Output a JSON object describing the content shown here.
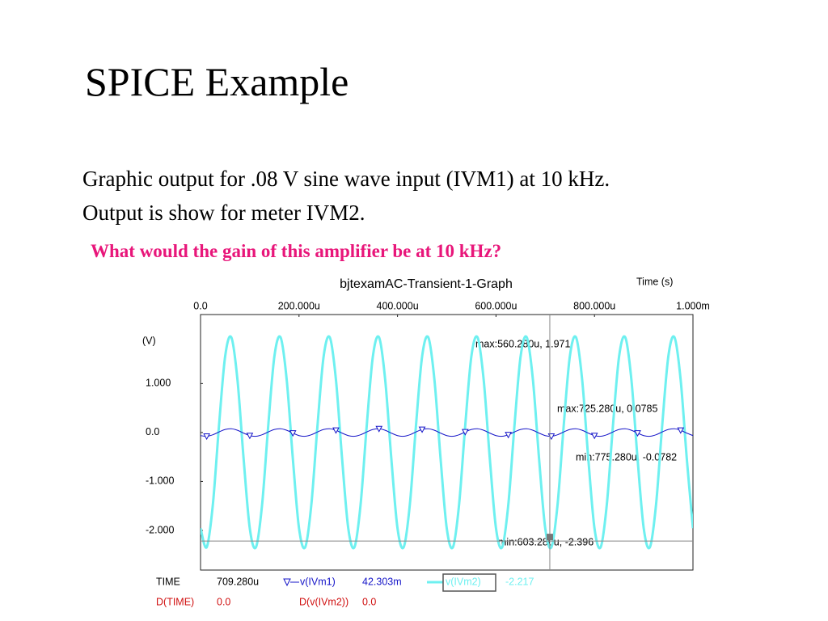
{
  "title": "SPICE Example",
  "body": [
    "Graphic output for .08 V sine wave input (IVM1) at 10 kHz.",
    "Output is show for meter IVM2."
  ],
  "question": "What would the gain of this amplifier be at 10 kHz?",
  "chart_data": {
    "type": "line",
    "title": "bjtexamAC-Transient-1-Graph",
    "x_label": "Time (s)",
    "y_label": "(V)",
    "x": [
      0,
      1.25e-05,
      2.5e-05,
      3.75e-05,
      5e-05,
      6.25e-05,
      7.5e-05,
      8.75e-05,
      0.0001,
      0.0001125,
      0.000125,
      0.0001375,
      0.00015,
      0.0001625,
      0.000175,
      0.0001875,
      0.0002,
      0.0002125,
      0.000225,
      0.0002375,
      0.00025,
      0.0002625,
      0.000275,
      0.0002875,
      0.0003,
      0.0003125,
      0.000325,
      0.0003375,
      0.00035,
      0.0003625,
      0.000375,
      0.0003875,
      0.0004,
      0.0004125,
      0.000425,
      0.0004375,
      0.00045,
      0.0004625,
      0.000475,
      0.0004875,
      0.0005,
      0.0005125,
      0.000525,
      0.0005375,
      0.00055,
      0.0005625,
      0.000575,
      0.0005875,
      0.0006,
      0.0006125,
      0.000625,
      0.0006375,
      0.00065,
      0.0006625,
      0.000675,
      0.0006875,
      0.0007,
      0.0007125,
      0.000725,
      0.0007375,
      0.00075,
      0.0007625,
      0.000775,
      0.0007875,
      0.0008,
      0.0008125,
      0.000825,
      0.0008375,
      0.00085,
      0.0008625,
      0.000875,
      0.0008875,
      0.0009,
      0.0009125,
      0.000925,
      0.0009375,
      0.00095,
      0.0009625,
      0.000975,
      0.0009875,
      0.001
    ],
    "series": [
      {
        "name": "v(IVm1)",
        "color": "#1414c8",
        "values": [
          -0.063,
          -0.077,
          -0.046,
          0.012,
          0.063,
          0.077,
          0.046,
          -0.012,
          -0.063,
          -0.077,
          -0.046,
          0.012,
          0.063,
          0.077,
          0.046,
          -0.012,
          -0.063,
          -0.077,
          -0.046,
          0.012,
          0.063,
          0.077,
          0.046,
          -0.012,
          -0.063,
          -0.077,
          -0.046,
          0.012,
          0.063,
          0.077,
          0.046,
          -0.012,
          -0.063,
          -0.077,
          -0.046,
          0.012,
          0.063,
          0.077,
          0.046,
          -0.012,
          -0.063,
          -0.077,
          -0.046,
          0.012,
          0.063,
          0.077,
          0.046,
          -0.012,
          -0.063,
          -0.077,
          -0.046,
          0.012,
          0.063,
          0.077,
          0.046,
          -0.012,
          -0.063,
          -0.077,
          -0.046,
          0.012,
          0.063,
          0.077,
          0.046,
          -0.012,
          -0.063,
          -0.077,
          -0.046,
          0.012,
          0.063,
          0.077,
          0.046,
          -0.012,
          -0.063,
          -0.077,
          -0.046,
          0.012,
          0.063,
          0.077,
          0.046,
          -0.012,
          -0.063
        ]
      },
      {
        "name": "v(IVm2)",
        "color": "#6ef0f0",
        "values": [
          -1.956,
          -2.344,
          -1.476,
          0.139,
          1.556,
          1.944,
          1.076,
          -0.539,
          -1.956,
          -2.344,
          -1.476,
          0.139,
          1.556,
          1.944,
          1.076,
          -0.539,
          -1.956,
          -2.344,
          -1.476,
          0.139,
          1.556,
          1.944,
          1.076,
          -0.539,
          -1.956,
          -2.344,
          -1.476,
          0.139,
          1.556,
          1.944,
          1.076,
          -0.539,
          -1.956,
          -2.344,
          -1.476,
          0.139,
          1.556,
          1.944,
          1.076,
          -0.539,
          -1.956,
          -2.344,
          -1.476,
          0.139,
          1.556,
          1.944,
          1.076,
          -0.539,
          -1.956,
          -2.344,
          -1.476,
          0.139,
          1.556,
          1.944,
          1.076,
          -0.539,
          -1.956,
          -2.344,
          -1.476,
          0.139,
          1.556,
          1.944,
          1.076,
          -0.539,
          -1.956,
          -2.344,
          -1.476,
          0.139,
          1.556,
          1.944,
          1.076,
          -0.539,
          -1.956,
          -2.344,
          -1.476,
          0.139,
          1.556,
          1.944,
          1.076,
          -0.539,
          -1.956
        ]
      }
    ],
    "xlim": [
      0,
      0.001
    ],
    "xticks": [
      {
        "value": 0,
        "label": "0.0"
      },
      {
        "value": 0.0002,
        "label": "200.000u"
      },
      {
        "value": 0.0004,
        "label": "400.000u"
      },
      {
        "value": 0.0006,
        "label": "600.000u"
      },
      {
        "value": 0.0008,
        "label": "800.000u"
      },
      {
        "value": 0.001,
        "label": "1.000m"
      }
    ],
    "ylim": [
      -2.81,
      2.41
    ],
    "yticks": [
      {
        "value": 1,
        "label": "1.000"
      },
      {
        "value": 0,
        "label": "0.0"
      },
      {
        "value": -1,
        "label": "-1.000"
      },
      {
        "value": -2,
        "label": "-2.000"
      }
    ],
    "grid": false,
    "annotations": [
      "max:560.280u, 1.971",
      "max:725.280u, 0.0785",
      "min:775.280u, -0.0782",
      "min:603.280u, -2.396"
    ],
    "readout": {
      "time_label": "TIME",
      "time": {
        "value": 0.00070928,
        "label": "709.280u"
      },
      "v1": {
        "value": 0.042303,
        "label": "42.303m"
      },
      "v2": -2.217,
      "dtime_label": "D(TIME)",
      "dtime": {
        "value": 0,
        "label": "0.0"
      },
      "dv_label": "D(v(IVm2))",
      "dv": {
        "value": 0,
        "label": "0.0"
      }
    }
  }
}
